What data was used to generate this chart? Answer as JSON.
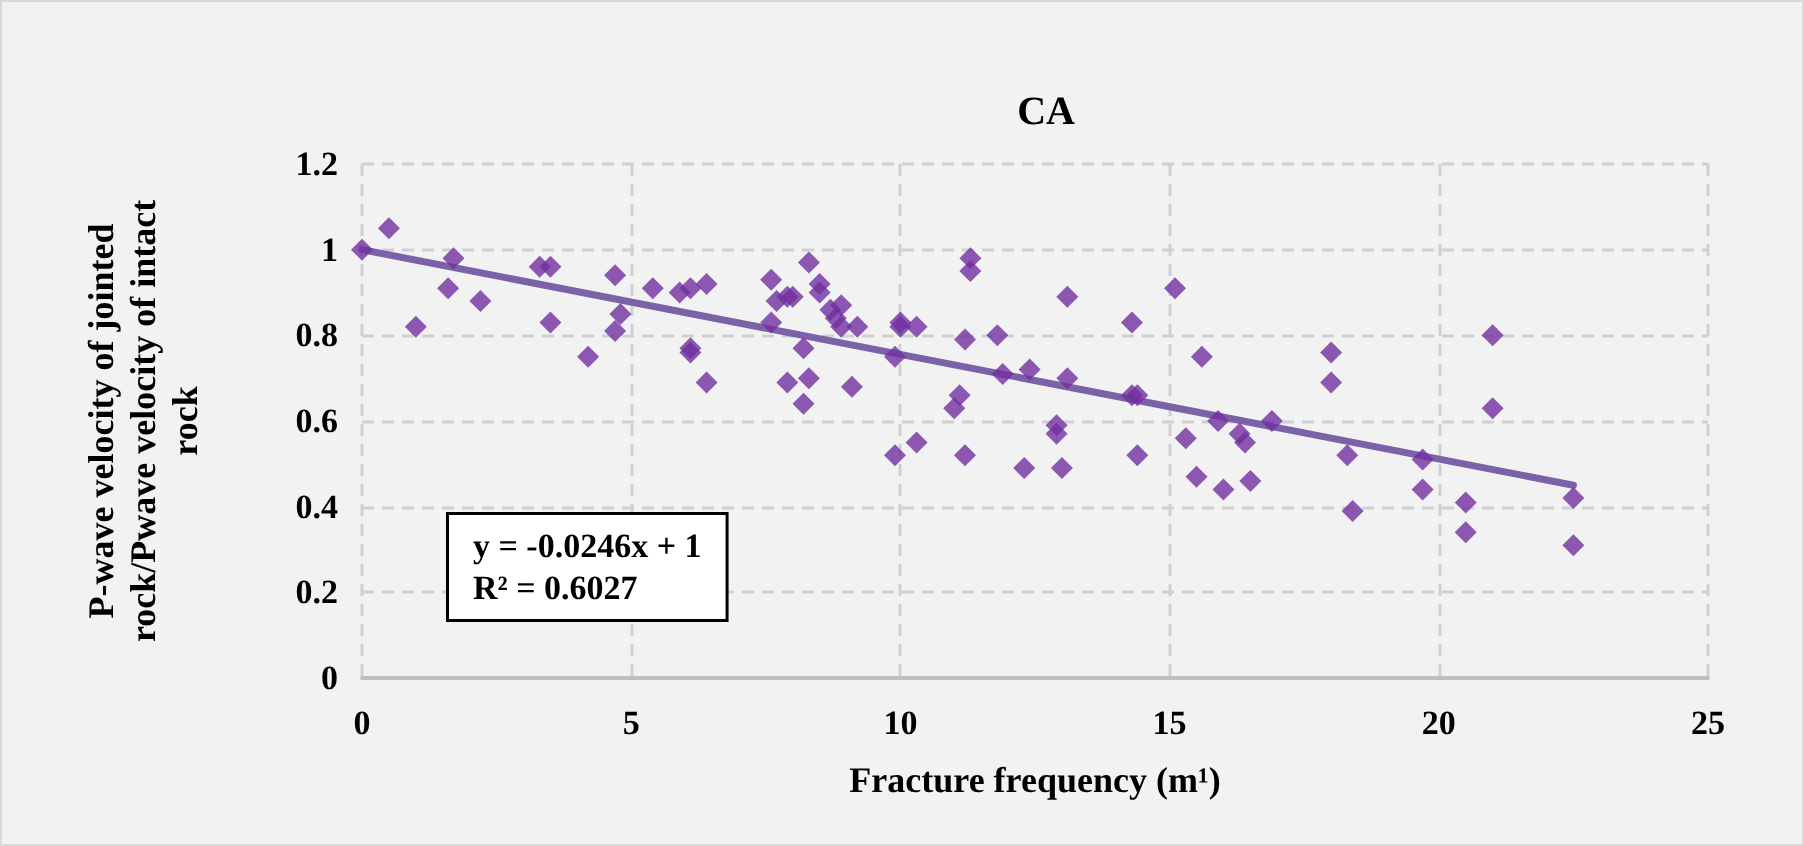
{
  "chart_data": {
    "type": "scatter",
    "title": "CA",
    "xlabel": "Fracture frequency (m¹)",
    "ylabel": "P-wave velocity of jointed rock/Pwave velocity of intact rock",
    "xlim": [
      0,
      25
    ],
    "xticks": [
      0,
      5,
      10,
      15,
      20,
      25
    ],
    "ylim": [
      0,
      1.2
    ],
    "yticks": [
      0,
      0.2,
      0.4,
      0.6,
      0.8,
      1,
      1.2
    ],
    "grid": true,
    "annotations": [
      "y = -0.0246x + 1",
      "R² = 0.6027"
    ],
    "series": [
      {
        "marker": "diamond",
        "color": "#7030a0",
        "x": [
          0,
          0.5,
          1,
          1.6,
          1.7,
          2.2,
          3.3,
          3.5,
          3.5,
          4.2,
          4.7,
          4.7,
          4.8,
          5.4,
          5.9,
          6.1,
          6.1,
          6.1,
          6.4,
          6.4,
          7.6,
          7.6,
          7.7,
          7.9,
          8.0,
          7.9,
          8.2,
          8.2,
          8.3,
          8.3,
          8.5,
          8.5,
          8.7,
          8.8,
          8.9,
          8.9,
          9.1,
          9.2,
          9.9,
          9.9,
          10.0,
          10.0,
          10.3,
          10.3,
          11.0,
          11.1,
          11.2,
          11.2,
          11.3,
          11.3,
          11.8,
          11.9,
          12.3,
          12.4,
          12.9,
          12.9,
          13.0,
          13.1,
          13.1,
          14.3,
          14.3,
          14.4,
          14.4,
          15.1,
          15.3,
          15.5,
          15.6,
          15.9,
          16.0,
          16.3,
          16.4,
          16.5,
          16.9,
          18.0,
          18.0,
          18.3,
          18.4,
          19.7,
          19.7,
          20.5,
          20.5,
          21.0,
          21.0,
          22.5,
          22.5
        ],
        "values": [
          1.0,
          1.05,
          0.82,
          0.91,
          0.98,
          0.88,
          0.96,
          0.96,
          0.83,
          0.75,
          0.94,
          0.81,
          0.85,
          0.91,
          0.9,
          0.91,
          0.77,
          0.76,
          0.92,
          0.69,
          0.93,
          0.83,
          0.88,
          0.89,
          0.89,
          0.69,
          0.77,
          0.64,
          0.97,
          0.7,
          0.92,
          0.9,
          0.86,
          0.84,
          0.87,
          0.82,
          0.68,
          0.82,
          0.75,
          0.52,
          0.83,
          0.82,
          0.82,
          0.55,
          0.63,
          0.66,
          0.79,
          0.52,
          0.98,
          0.95,
          0.8,
          0.71,
          0.49,
          0.72,
          0.59,
          0.57,
          0.49,
          0.89,
          0.7,
          0.83,
          0.66,
          0.66,
          0.52,
          0.91,
          0.56,
          0.47,
          0.75,
          0.6,
          0.44,
          0.57,
          0.55,
          0.46,
          0.6,
          0.76,
          0.69,
          0.52,
          0.39,
          0.51,
          0.44,
          0.41,
          0.34,
          0.8,
          0.63,
          0.42,
          0.31
        ]
      },
      {
        "type": "line",
        "marker": "none",
        "color": "#7b61a6",
        "x": [
          0,
          22.5
        ],
        "values": [
          1,
          0.45
        ]
      }
    ]
  }
}
